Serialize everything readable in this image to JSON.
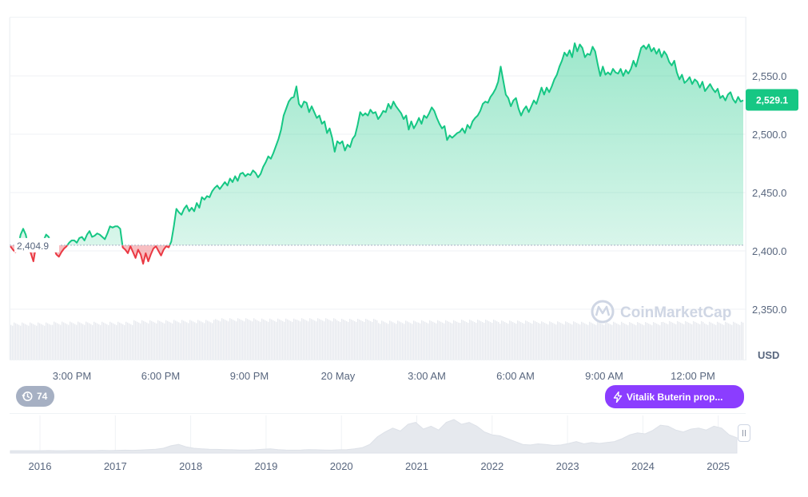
{
  "chart_data": [
    {
      "type": "area",
      "title": "",
      "currency": "USD",
      "x_tick_labels": [
        "3:00 PM",
        "6:00 PM",
        "9:00 PM",
        "20 May",
        "3:00 AM",
        "6:00 AM",
        "9:00 AM",
        "12:00 PM"
      ],
      "y_tick_labels": [
        "2,350.0",
        "2,400.0",
        "2,450.0",
        "2,500.0",
        "2,550.0"
      ],
      "ylim": [
        2314,
        2596
      ],
      "reference_price": 2404.9,
      "reference_label": "2,404.9",
      "current_price": 2529.1,
      "current_price_label": "2,529.1",
      "colors": {
        "up": "#16c784",
        "down": "#ea3943",
        "price_badge": "#16c784"
      },
      "grid": true,
      "legend": "none",
      "series": [
        {
          "values": [
            2404,
            2401,
            2399,
            2404,
            2414,
            2419,
            2414,
            2404,
            2398,
            2391,
            2404,
            2407,
            2401,
            2409,
            2414,
            2412,
            2406,
            2403,
            2397,
            2395,
            2399,
            2402,
            2404,
            2407,
            2409,
            2409,
            2407,
            2411,
            2412,
            2409,
            2414,
            2417,
            2412,
            2413,
            2415,
            2414,
            2412,
            2410,
            2415,
            2421,
            2420,
            2421,
            2421,
            2419,
            2403,
            2401,
            2398,
            2404,
            2399,
            2394,
            2401,
            2397,
            2389,
            2398,
            2391,
            2397,
            2402,
            2404,
            2400,
            2396,
            2401,
            2404,
            2403,
            2408,
            2421,
            2436,
            2433,
            2431,
            2436,
            2439,
            2434,
            2437,
            2434,
            2441,
            2437,
            2446,
            2444,
            2447,
            2446,
            2451,
            2454,
            2456,
            2453,
            2456,
            2459,
            2456,
            2462,
            2459,
            2464,
            2460,
            2466,
            2467,
            2464,
            2466,
            2465,
            2469,
            2467,
            2463,
            2466,
            2472,
            2476,
            2481,
            2479,
            2484,
            2490,
            2496,
            2504,
            2516,
            2522,
            2528,
            2531,
            2532,
            2541,
            2526,
            2523,
            2528,
            2527,
            2519,
            2524,
            2519,
            2514,
            2516,
            2509,
            2511,
            2501,
            2505,
            2497,
            2485,
            2494,
            2492,
            2494,
            2486,
            2491,
            2489,
            2496,
            2499,
            2508,
            2519,
            2516,
            2518,
            2516,
            2521,
            2518,
            2519,
            2513,
            2516,
            2520,
            2519,
            2526,
            2522,
            2528,
            2524,
            2521,
            2518,
            2513,
            2516,
            2504,
            2511,
            2505,
            2509,
            2514,
            2509,
            2516,
            2514,
            2518,
            2523,
            2520,
            2514,
            2509,
            2505,
            2507,
            2495,
            2499,
            2497,
            2499,
            2501,
            2502,
            2505,
            2501,
            2508,
            2505,
            2511,
            2514,
            2516,
            2520,
            2526,
            2528,
            2527,
            2532,
            2535,
            2539,
            2545,
            2558,
            2546,
            2534,
            2531,
            2524,
            2529,
            2531,
            2522,
            2516,
            2521,
            2524,
            2519,
            2524,
            2529,
            2526,
            2533,
            2540,
            2534,
            2540,
            2536,
            2541,
            2547,
            2551,
            2558,
            2563,
            2570,
            2567,
            2572,
            2566,
            2578,
            2571,
            2577,
            2574,
            2566,
            2569,
            2568,
            2575,
            2571,
            2560,
            2550,
            2558,
            2551,
            2553,
            2551,
            2556,
            2553,
            2552,
            2556,
            2550,
            2555,
            2552,
            2556,
            2563,
            2558,
            2566,
            2574,
            2576,
            2573,
            2577,
            2571,
            2574,
            2569,
            2573,
            2566,
            2571,
            2568,
            2562,
            2559,
            2563,
            2553,
            2547,
            2551,
            2544,
            2546,
            2549,
            2543,
            2547,
            2545,
            2540,
            2545,
            2537,
            2540,
            2543,
            2539,
            2536,
            2539,
            2531,
            2533,
            2529,
            2534,
            2536,
            2530,
            2527,
            2532,
            2528,
            2529.1
          ]
        }
      ],
      "volume_bars": [
        2,
        8,
        7,
        18,
        20,
        32,
        29,
        32,
        28,
        15,
        18,
        22,
        16,
        10,
        7,
        5,
        12,
        7
      ]
    },
    {
      "type": "area",
      "title": "",
      "x_tick_labels": [
        "2016",
        "2017",
        "2018",
        "2019",
        "2020",
        "2021",
        "2022",
        "2023",
        "2024",
        "2025"
      ],
      "series": [
        {
          "values": [
            12,
            12,
            12,
            12,
            12,
            13,
            12,
            12,
            13,
            13,
            13,
            13,
            14,
            13,
            14,
            15,
            14,
            16,
            18,
            20,
            25,
            38,
            45,
            32,
            25,
            22,
            20,
            19,
            18,
            17,
            16,
            16,
            17,
            20,
            22,
            18,
            16,
            15,
            16,
            18,
            17,
            16,
            15,
            17,
            18,
            22,
            28,
            45,
            85,
            110,
            130,
            115,
            150,
            160,
            125,
            140,
            120,
            160,
            175,
            150,
            160,
            140,
            110,
            95,
            90,
            75,
            60,
            45,
            42,
            48,
            45,
            40,
            42,
            50,
            60,
            48,
            55,
            50,
            55,
            60,
            75,
            95,
            105,
            100,
            118,
            145,
            140,
            120,
            110,
            125,
            130,
            120,
            140,
            130,
            95,
            80
          ]
        }
      ]
    }
  ],
  "watermark": {
    "brand": "CoinMarketCap"
  },
  "history_badge": {
    "value": "74"
  },
  "news_badge": {
    "text": "Vitalik Buterin prop..."
  }
}
